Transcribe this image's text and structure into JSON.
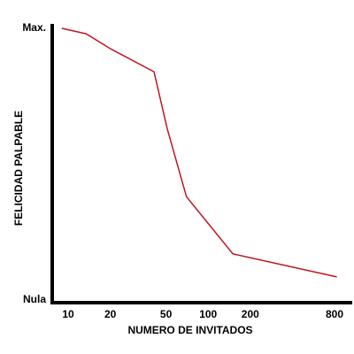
{
  "chart_data": {
    "type": "line",
    "x_label": "NUMERO DE INVITADOS",
    "y_label": "FELICIDAD PALPABLE",
    "x": [
      9,
      13.4,
      20,
      41,
      51,
      70,
      150,
      830
    ],
    "series": [
      {
        "color": "#c0151d",
        "values": [
          100,
          98,
          92.5,
          84,
          63,
          38,
          17,
          8.5
        ]
      }
    ],
    "xscale": "log",
    "xlim": [
      7.8,
      1070
    ],
    "xticks": [
      10,
      20,
      50,
      100,
      200,
      800
    ],
    "ylim": [
      0,
      100
    ],
    "yticks": [
      {
        "value": 0,
        "label": "Nula"
      },
      {
        "value": 100,
        "label": "Max."
      }
    ]
  }
}
